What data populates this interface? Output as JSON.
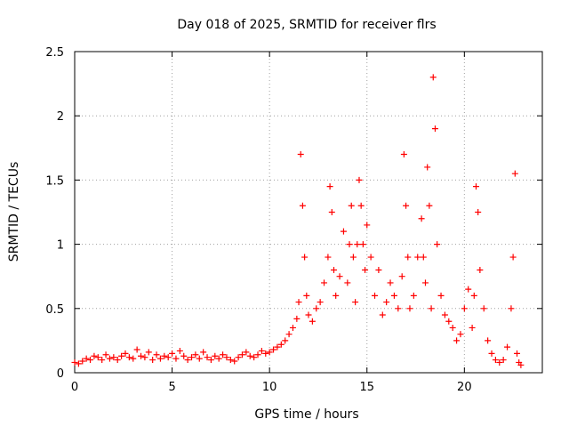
{
  "chart_data": {
    "type": "scatter",
    "title": "Day 018 of 2025, SRMTID for receiver flrs",
    "xlabel": "GPS time / hours",
    "ylabel": "SRMTID / TECUs",
    "xlim": [
      0,
      24
    ],
    "ylim": [
      0,
      2.5
    ],
    "xticks": [
      0,
      5,
      10,
      15,
      20
    ],
    "yticks": [
      0,
      0.5,
      1,
      1.5,
      2,
      2.5
    ],
    "xtick_labels": [
      "0",
      "5",
      "10",
      "15",
      "20"
    ],
    "ytick_labels": [
      "0",
      "0.5",
      "1",
      "1.5",
      "2",
      "2.5"
    ],
    "grid": true,
    "marker": "plus",
    "series": [
      {
        "name": "flrs",
        "color": "#ff0000",
        "x": [
          0.0,
          0.2,
          0.4,
          0.6,
          0.8,
          1.0,
          1.2,
          1.4,
          1.6,
          1.8,
          2.0,
          2.2,
          2.4,
          2.6,
          2.8,
          3.0,
          3.2,
          3.4,
          3.6,
          3.8,
          4.0,
          4.2,
          4.4,
          4.6,
          4.8,
          5.0,
          5.2,
          5.4,
          5.6,
          5.8,
          6.0,
          6.2,
          6.4,
          6.6,
          6.8,
          7.0,
          7.2,
          7.4,
          7.6,
          7.8,
          8.0,
          8.2,
          8.4,
          8.6,
          8.8,
          9.0,
          9.2,
          9.4,
          9.6,
          9.8,
          10.0,
          10.2,
          10.4,
          10.6,
          10.8,
          11.0,
          11.2,
          11.4,
          11.5,
          11.6,
          11.7,
          11.8,
          11.9,
          12.0,
          12.2,
          12.4,
          12.6,
          12.8,
          13.0,
          13.1,
          13.2,
          13.3,
          13.4,
          13.6,
          13.8,
          14.0,
          14.1,
          14.2,
          14.3,
          14.4,
          14.5,
          14.6,
          14.7,
          14.8,
          14.9,
          15.0,
          15.2,
          15.4,
          15.6,
          15.8,
          16.0,
          16.2,
          16.4,
          16.6,
          16.8,
          16.9,
          17.0,
          17.1,
          17.2,
          17.4,
          17.6,
          17.8,
          17.9,
          18.0,
          18.1,
          18.2,
          18.3,
          18.4,
          18.5,
          18.6,
          18.8,
          19.0,
          19.2,
          19.4,
          19.6,
          19.8,
          20.0,
          20.2,
          20.4,
          20.5,
          20.6,
          20.7,
          20.8,
          21.0,
          21.2,
          21.4,
          21.6,
          21.8,
          22.0,
          22.2,
          22.4,
          22.5,
          22.6,
          22.7,
          22.8,
          22.9
        ],
        "y": [
          0.08,
          0.07,
          0.09,
          0.11,
          0.1,
          0.13,
          0.12,
          0.1,
          0.14,
          0.11,
          0.12,
          0.1,
          0.13,
          0.15,
          0.12,
          0.11,
          0.18,
          0.13,
          0.12,
          0.16,
          0.1,
          0.14,
          0.11,
          0.13,
          0.12,
          0.15,
          0.11,
          0.17,
          0.13,
          0.1,
          0.12,
          0.14,
          0.11,
          0.16,
          0.12,
          0.1,
          0.13,
          0.11,
          0.14,
          0.12,
          0.1,
          0.09,
          0.12,
          0.14,
          0.16,
          0.13,
          0.12,
          0.14,
          0.17,
          0.15,
          0.16,
          0.18,
          0.2,
          0.22,
          0.25,
          0.3,
          0.35,
          0.42,
          0.55,
          1.7,
          1.3,
          0.9,
          0.6,
          0.45,
          0.4,
          0.5,
          0.55,
          0.7,
          0.9,
          1.45,
          1.25,
          0.8,
          0.6,
          0.75,
          1.1,
          0.7,
          1.0,
          1.3,
          0.9,
          0.55,
          1.0,
          1.5,
          1.3,
          1.0,
          0.8,
          1.15,
          0.9,
          0.6,
          0.8,
          0.45,
          0.55,
          0.7,
          0.6,
          0.5,
          0.75,
          1.7,
          1.3,
          0.9,
          0.5,
          0.6,
          0.9,
          1.2,
          0.9,
          0.7,
          1.6,
          1.3,
          0.5,
          2.3,
          1.9,
          1.0,
          0.6,
          0.45,
          0.4,
          0.35,
          0.25,
          0.3,
          0.5,
          0.65,
          0.35,
          0.6,
          1.45,
          1.25,
          0.8,
          0.5,
          0.25,
          0.15,
          0.1,
          0.08,
          0.1,
          0.2,
          0.5,
          0.9,
          1.55,
          0.15,
          0.08,
          0.06
        ]
      }
    ]
  }
}
